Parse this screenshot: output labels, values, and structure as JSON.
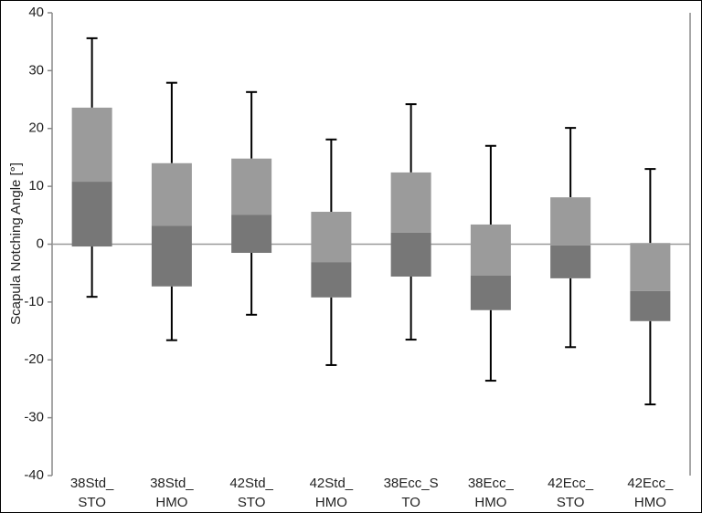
{
  "chart_data": {
    "type": "box",
    "y_label": "Scapula Notching Angle [°]",
    "categories": [
      [
        "38Std_",
        "STO"
      ],
      [
        "38Std_",
        "HMO"
      ],
      [
        "42Std_",
        "STO"
      ],
      [
        "42Std_",
        "HMO"
      ],
      [
        "38Ecc_S",
        "TO"
      ],
      [
        "38Ecc_",
        "HMO"
      ],
      [
        "42Ecc_",
        "STO"
      ],
      [
        "42Ecc_",
        "HMO"
      ]
    ],
    "min": [
      -9.1,
      -16.6,
      -12.2,
      -20.9,
      -16.5,
      -23.6,
      -17.8,
      -27.7
    ],
    "q1": [
      -0.4,
      -7.3,
      -1.5,
      -9.2,
      -5.6,
      -11.4,
      -5.9,
      -13.3
    ],
    "median": [
      10.8,
      3.2,
      5.1,
      -3.1,
      2.0,
      -5.4,
      -0.2,
      -8.1
    ],
    "q3": [
      23.6,
      14.0,
      14.8,
      5.6,
      12.4,
      3.4,
      8.1,
      0.2
    ],
    "max": [
      35.6,
      27.9,
      26.3,
      18.1,
      24.2,
      17.0,
      20.1,
      13.0
    ],
    "upper_color": "#9b9b9b",
    "lower_color": "#777777",
    "ylim": [
      -40,
      40
    ],
    "yticks": [
      -40,
      -30,
      -20,
      -10,
      0,
      10,
      20,
      30,
      40
    ]
  }
}
